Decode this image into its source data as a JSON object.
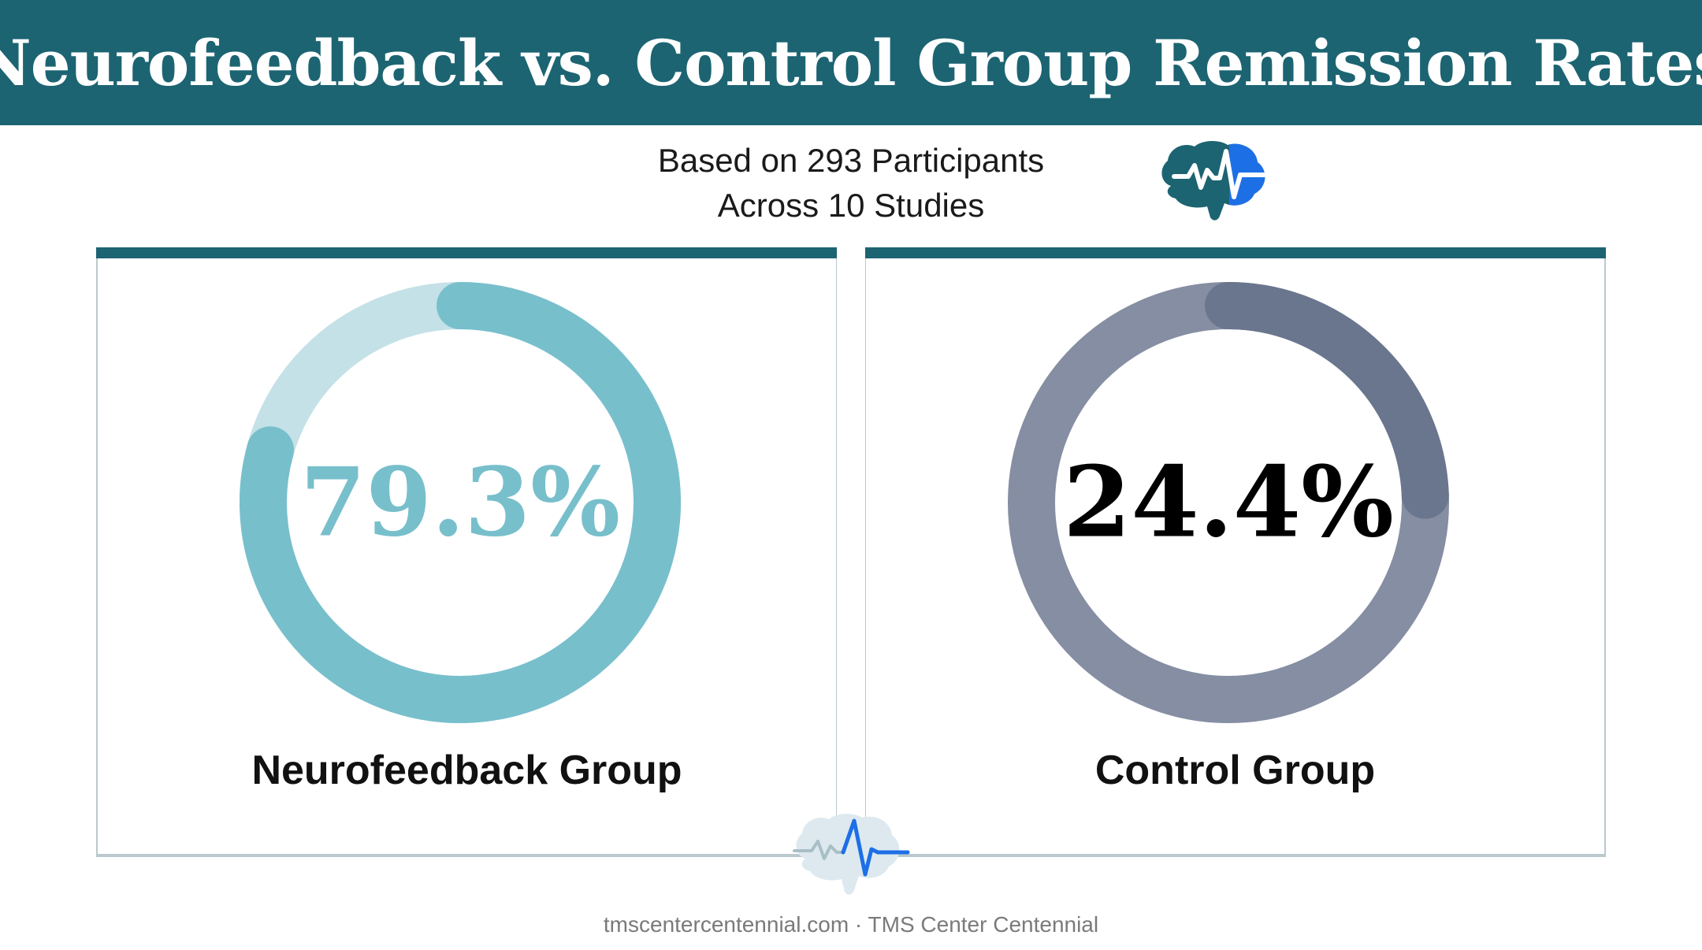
{
  "header": {
    "title": "Neurofeedback vs. Control Group Remission Rates"
  },
  "subtitle": {
    "line1": "Based on 293 Participants",
    "line2": "Across 10 Studies"
  },
  "icons": {
    "header_icon": "brain-pulse-icon",
    "center_icon": "brain-pulse-icon"
  },
  "colors": {
    "banner": "#1c6472",
    "neurofeedback_ring": "#78bfcc",
    "neurofeedback_track": "#c4e1e7",
    "control_ring": "#858ea2",
    "control_overlap": "#6a768d",
    "accent_blue": "#1d6fe6"
  },
  "chart_data": [
    {
      "type": "pie",
      "style": "donut",
      "title": "",
      "categories": [
        "Neurofeedback Group"
      ],
      "values": [
        79.3
      ],
      "unit": "%",
      "center_label": "79.3%",
      "group_label": "Neurofeedback Group"
    },
    {
      "type": "pie",
      "style": "donut",
      "title": "",
      "categories": [
        "Control Group"
      ],
      "values": [
        24.4
      ],
      "unit": "%",
      "center_label": "24.4%",
      "group_label": "Control Group"
    }
  ],
  "footer": {
    "text": "tmscentercentennial.com · TMS Center Centennial"
  }
}
